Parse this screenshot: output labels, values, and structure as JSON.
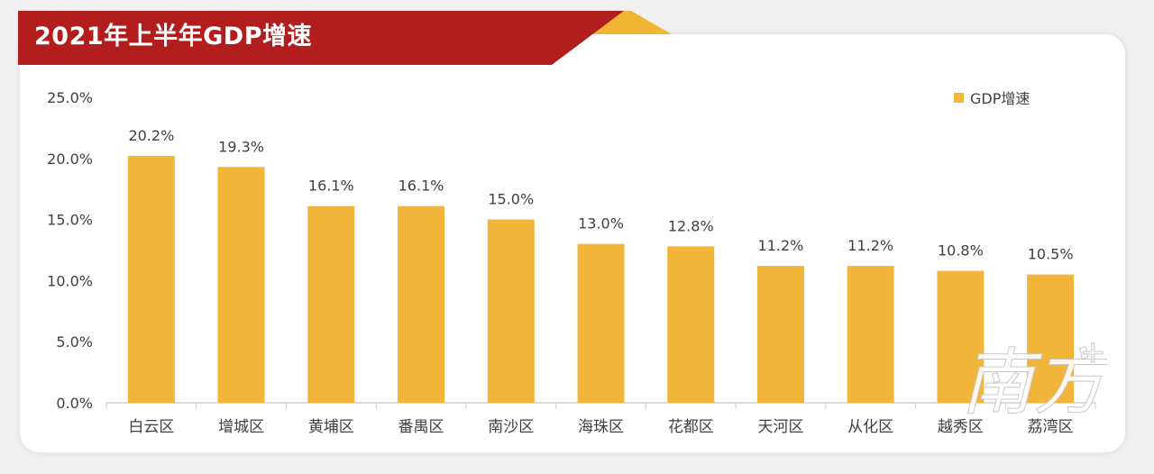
{
  "header": {
    "title": "2021年上半年GDP增速"
  },
  "colors": {
    "bar": "#F1B53A",
    "banner_red": "#B21E1E",
    "banner_gold": "#F0B633",
    "axis": "#d0d0d0"
  },
  "chart_data": {
    "type": "bar",
    "title": "2021年上半年GDP增速",
    "categories": [
      "白云区",
      "增城区",
      "黄埔区",
      "番禺区",
      "南沙区",
      "海珠区",
      "花都区",
      "天河区",
      "从化区",
      "越秀区",
      "荔湾区"
    ],
    "series": [
      {
        "name": "GDP增速",
        "values": [
          20.2,
          19.3,
          16.1,
          16.1,
          15.0,
          13.0,
          12.8,
          11.2,
          11.2,
          10.8,
          10.5
        ]
      }
    ],
    "data_labels": [
      "20.2%",
      "19.3%",
      "16.1%",
      "16.1%",
      "15.0%",
      "13.0%",
      "12.8%",
      "11.2%",
      "11.2%",
      "10.8%",
      "10.5%"
    ],
    "ylim": [
      0,
      25
    ],
    "yticks": [
      0,
      5,
      10,
      15,
      20,
      25
    ],
    "ytick_labels": [
      "0.0%",
      "5.0%",
      "10.0%",
      "15.0%",
      "20.0%",
      "25.0%"
    ],
    "xlabel": "",
    "ylabel": "",
    "grid": false,
    "legend": {
      "position": "top-right",
      "entries": [
        "GDP增速"
      ]
    }
  }
}
